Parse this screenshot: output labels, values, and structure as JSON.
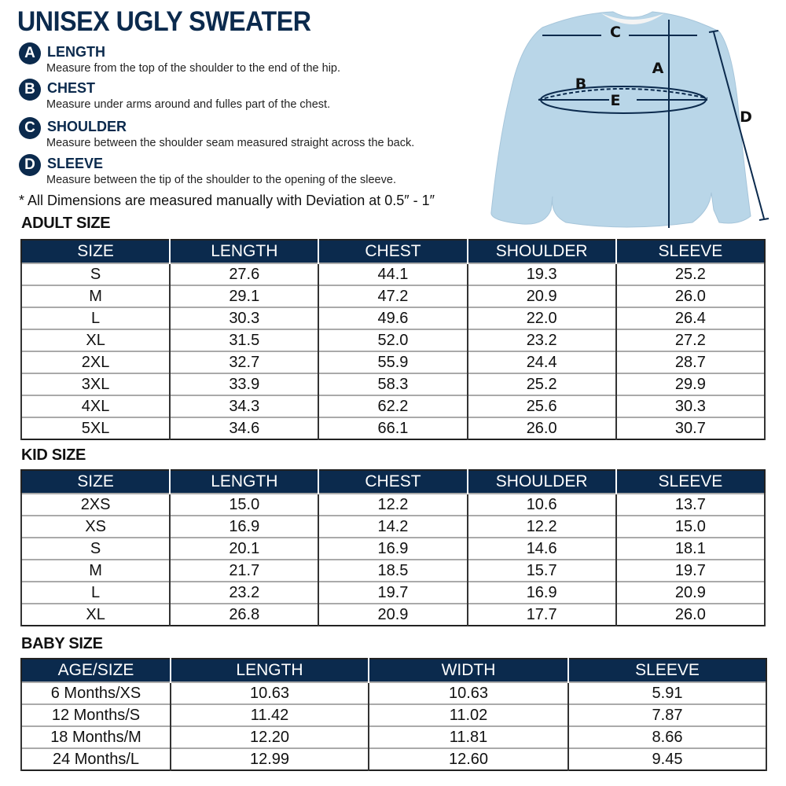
{
  "title": "UNISEX UGLY SWEATER",
  "measurements": [
    {
      "letter": "A",
      "label": "LENGTH",
      "description": "Measure from the top of the shoulder to the end of the hip."
    },
    {
      "letter": "B",
      "label": "CHEST",
      "description": "Measure under arms around and fulles part of the chest."
    },
    {
      "letter": "C",
      "label": "SHOULDER",
      "description": "Measure between the shoulder seam measured straight across the back."
    },
    {
      "letter": "D",
      "label": "SLEEVE",
      "description": "Measure between the tip of the shoulder to the opening of the sleeve."
    }
  ],
  "note": "* All Dimensions are measured manually with Deviation at 0.5″ - 1″",
  "diagram": {
    "labels": [
      "A",
      "B",
      "C",
      "D",
      "E"
    ],
    "garment_color": "#b9d6e8",
    "arrow_color": "#0b2a4d"
  },
  "colors": {
    "header": "#0b2a4d"
  },
  "adult": {
    "title": "ADULT SIZE",
    "headers": [
      "SIZE",
      "LENGTH",
      "CHEST",
      "SHOULDER",
      "SLEEVE"
    ],
    "rows": [
      [
        "S",
        "27.6",
        "44.1",
        "19.3",
        "25.2"
      ],
      [
        "M",
        "29.1",
        "47.2",
        "20.9",
        "26.0"
      ],
      [
        "L",
        "30.3",
        "49.6",
        "22.0",
        "26.4"
      ],
      [
        "XL",
        "31.5",
        "52.0",
        "23.2",
        "27.2"
      ],
      [
        "2XL",
        "32.7",
        "55.9",
        "24.4",
        "28.7"
      ],
      [
        "3XL",
        "33.9",
        "58.3",
        "25.2",
        "29.9"
      ],
      [
        "4XL",
        "34.3",
        "62.2",
        "25.6",
        "30.3"
      ],
      [
        "5XL",
        "34.6",
        "66.1",
        "26.0",
        "30.7"
      ]
    ]
  },
  "kid": {
    "title": "KID SIZE",
    "headers": [
      "SIZE",
      "LENGTH",
      "CHEST",
      "SHOULDER",
      "SLEEVE"
    ],
    "rows": [
      [
        "2XS",
        "15.0",
        "12.2",
        "10.6",
        "13.7"
      ],
      [
        "XS",
        "16.9",
        "14.2",
        "12.2",
        "15.0"
      ],
      [
        "S",
        "20.1",
        "16.9",
        "14.6",
        "18.1"
      ],
      [
        "M",
        "21.7",
        "18.5",
        "15.7",
        "19.7"
      ],
      [
        "L",
        "23.2",
        "19.7",
        "16.9",
        "20.9"
      ],
      [
        "XL",
        "26.8",
        "20.9",
        "17.7",
        "26.0"
      ]
    ]
  },
  "baby": {
    "title": "BABY SIZE",
    "headers": [
      "AGE/SIZE",
      "LENGTH",
      "WIDTH",
      "SLEEVE"
    ],
    "rows": [
      [
        "6 Months/XS",
        "10.63",
        "10.63",
        "5.91"
      ],
      [
        "12 Months/S",
        "11.42",
        "11.02",
        "7.87"
      ],
      [
        "18 Months/M",
        "12.20",
        "11.81",
        "8.66"
      ],
      [
        "24 Months/L",
        "12.99",
        "12.60",
        "9.45"
      ]
    ]
  }
}
